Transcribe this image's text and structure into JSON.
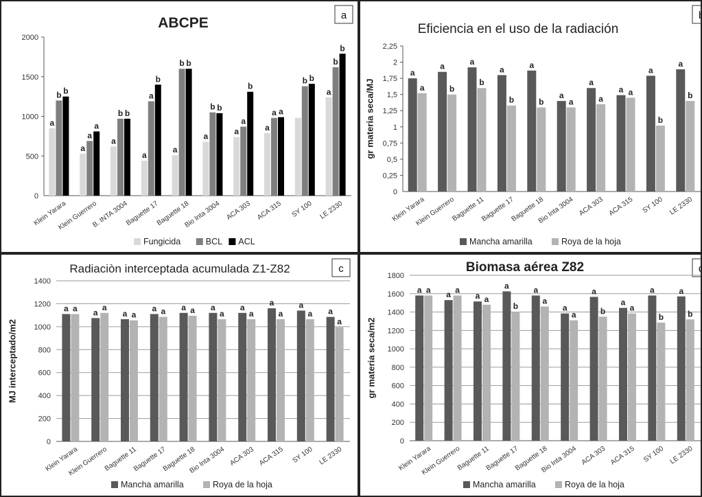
{
  "colors": {
    "fungicida": "#d9d9d9",
    "bcl": "#7f7f7f",
    "acl": "#000000",
    "mancha": "#595959",
    "roya": "#b3b3b3",
    "grid": "#9a9a9a"
  },
  "chart_data": [
    {
      "type": "bar",
      "panel_letter": "a",
      "title": "ABCPE",
      "xlabel": "",
      "ylabel": "",
      "ylim": [
        0,
        2000
      ],
      "yticks": [
        "0",
        "500",
        "1000",
        "1500",
        "2000"
      ],
      "grid": false,
      "legend_position": "bottom",
      "categories": [
        "Klein Yarara",
        "Klein Guerrero",
        "B. Inta 3004",
        "Baguette 17",
        "Baguette 18",
        "Bio Inta 3004",
        "ACA 303",
        "ACA 315",
        "SY 100",
        "LE 2330"
      ],
      "tick_labels": [
        "Klein Yarara",
        "Klein Guerrero",
        "B. INTA 3004",
        "Baguette 17",
        "Baguette 18",
        "Bio Inta 3004",
        "ACA 303",
        "ACA 315",
        "SY 100",
        "LE 2330"
      ],
      "series": [
        {
          "name": "Fungicida",
          "values": [
            850,
            530,
            620,
            440,
            510,
            680,
            740,
            790,
            980,
            1240
          ],
          "labels": [
            "a",
            "a",
            "a",
            "a",
            "a",
            "a",
            "a",
            "a",
            "",
            "a"
          ]
        },
        {
          "name": "BCL",
          "values": [
            1200,
            690,
            970,
            1190,
            1600,
            1050,
            870,
            980,
            1380,
            1620
          ],
          "labels": [
            "b",
            "a",
            "b",
            "a",
            "b",
            "b",
            "a",
            "a",
            "b",
            "b"
          ]
        },
        {
          "name": "ACL",
          "values": [
            1250,
            810,
            970,
            1400,
            1600,
            1040,
            1310,
            990,
            1410,
            1790
          ],
          "labels": [
            "b",
            "a",
            "b",
            "b",
            "b",
            "b",
            "b",
            "a",
            "b",
            "b"
          ]
        }
      ]
    },
    {
      "type": "bar",
      "panel_letter": "b",
      "title": "Eficiencia en el uso de la radiación",
      "xlabel": "",
      "ylabel": "gr materia seca/MJ",
      "ylim": [
        0,
        2.25
      ],
      "yticks": [
        "0",
        "0,25",
        "0,5",
        "0,75",
        "1",
        "1,25",
        "1,5",
        "1,75",
        "2",
        "2,25"
      ],
      "grid": false,
      "legend_position": "bottom",
      "categories": [
        "Klein Yarara",
        "Klein Guerrero",
        "Baguette 11",
        "Baguette 17",
        "Baguette 18",
        "Bio Inta 3004",
        "ACA 303",
        "ACA 315",
        "SY 100",
        "LE 2330"
      ],
      "series": [
        {
          "name": "Mancha amarilla",
          "values": [
            1.75,
            1.85,
            1.92,
            1.8,
            1.87,
            1.4,
            1.6,
            1.49,
            1.79,
            1.89
          ],
          "labels": [
            "a",
            "a",
            "a",
            "a",
            "a",
            "a",
            "a",
            "a",
            "a",
            "a"
          ]
        },
        {
          "name": "Roya de la hoja",
          "values": [
            1.52,
            1.5,
            1.6,
            1.33,
            1.3,
            1.3,
            1.35,
            1.45,
            1.02,
            1.4
          ],
          "labels": [
            "a",
            "b",
            "b",
            "b",
            "b",
            "a",
            "a",
            "a",
            "b",
            "b"
          ]
        }
      ]
    },
    {
      "type": "bar",
      "panel_letter": "c",
      "title": "Radiaciòn interceptada acumulada Z1-Z82",
      "xlabel": "",
      "ylabel": "MJ interceptado/m2",
      "ylim": [
        0,
        1400
      ],
      "yticks": [
        "0",
        "200",
        "400",
        "600",
        "800",
        "1000",
        "1200",
        "1400"
      ],
      "grid": true,
      "legend_position": "bottom",
      "categories": [
        "Klein Yarara",
        "Klein Guerrero",
        "Baguette 11",
        "Baguette 17",
        "Baguette 18",
        "Bio Inta 3004",
        "ACA 303",
        "ACA 315",
        "SY 100",
        "LE 2330"
      ],
      "series": [
        {
          "name": "Mancha amarilla",
          "values": [
            1110,
            1075,
            1065,
            1110,
            1120,
            1120,
            1120,
            1160,
            1140,
            1085
          ],
          "labels": [
            "a",
            "a",
            "a",
            "a",
            "a",
            "a",
            "a",
            "a",
            "a",
            "a"
          ]
        },
        {
          "name": "Roya de la hoja",
          "values": [
            1110,
            1120,
            1055,
            1085,
            1095,
            1065,
            1065,
            1065,
            1065,
            995
          ],
          "labels": [
            "a",
            "a",
            "a",
            "a",
            "a",
            "a",
            "a",
            "a",
            "a",
            "a"
          ]
        }
      ]
    },
    {
      "type": "bar",
      "panel_letter": "d",
      "title": "Biomasa aérea Z82",
      "xlabel": "",
      "ylabel": "gr materia seca/m2",
      "ylim": [
        0,
        1800
      ],
      "yticks": [
        "0",
        "200",
        "400",
        "600",
        "800",
        "1000",
        "1200",
        "1400",
        "1600",
        "1800"
      ],
      "grid": true,
      "legend_position": "bottom",
      "categories": [
        "Klein Yarara",
        "Klein Guerrero",
        "Baguette 11",
        "Baguette 17",
        "Baguette 18",
        "Bio Inta 3004",
        "ACA 303",
        "ACA 315",
        "SY 100",
        "LE 2330"
      ],
      "series": [
        {
          "name": "Mancha amarilla",
          "values": [
            1580,
            1530,
            1515,
            1625,
            1580,
            1385,
            1565,
            1445,
            1580,
            1570
          ],
          "labels": [
            "a",
            "a",
            "a",
            "a",
            "a",
            "a",
            "a",
            "a",
            "a",
            "a"
          ]
        },
        {
          "name": "Roya de la hoja",
          "values": [
            1580,
            1580,
            1480,
            1405,
            1460,
            1310,
            1350,
            1385,
            1285,
            1320
          ],
          "labels": [
            "a",
            "a",
            "a",
            "b",
            "a",
            "a",
            "b",
            "a",
            "b",
            "b"
          ]
        }
      ]
    }
  ]
}
